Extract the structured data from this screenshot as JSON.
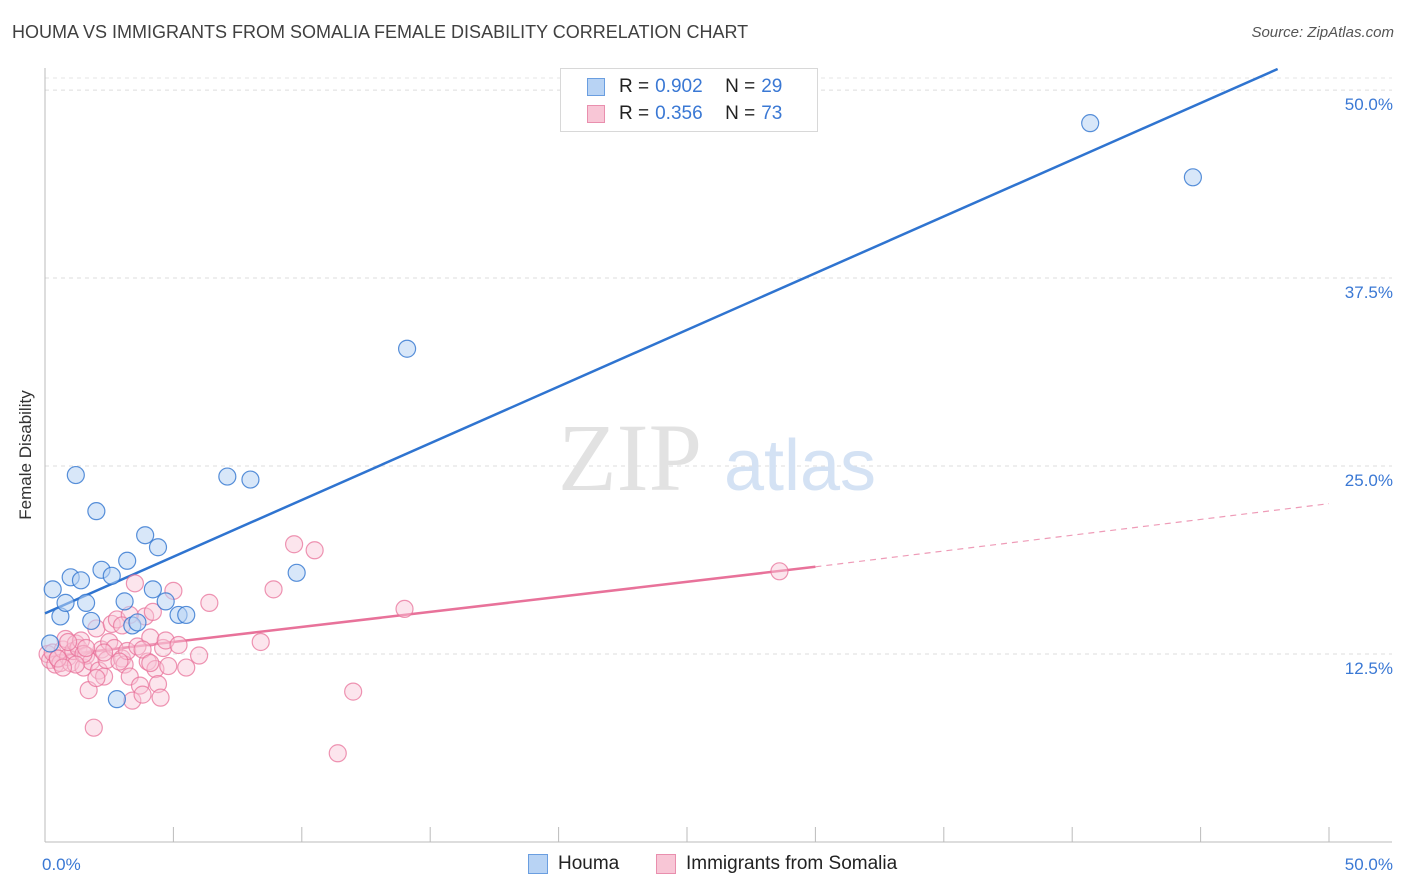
{
  "header": {
    "title": "HOUMA VS IMMIGRANTS FROM SOMALIA FEMALE DISABILITY CORRELATION CHART",
    "source": "Source: ZipAtlas.com"
  },
  "watermark": {
    "zip": "ZIP",
    "atlas": "atlas"
  },
  "colors": {
    "houma": "#2f74d0",
    "houma_fill": "#b8d3f4",
    "somalia": "#e8729a",
    "somalia_fill": "#f8c6d6",
    "axis_label": "#3a78d4"
  },
  "legend_stats": [
    {
      "r_label": "R =",
      "r_value": "0.902",
      "n_label": "N =",
      "n_value": "29"
    },
    {
      "r_label": "R =",
      "r_value": "0.356",
      "n_label": "N =",
      "n_value": "73"
    }
  ],
  "chart_data": {
    "type": "scatter",
    "ylabel": "Female Disability",
    "xlim": [
      0,
      50
    ],
    "ylim": [
      0,
      52
    ],
    "x_tick_labels": [
      "0.0%",
      "50.0%"
    ],
    "y_ticks": [
      12.5,
      25.0,
      37.5,
      50.0
    ],
    "y_tick_labels": [
      "12.5%",
      "25.0%",
      "37.5%",
      "50.0%"
    ],
    "grid": true,
    "series": [
      {
        "name": "Houma",
        "r": 0.902,
        "n": 29,
        "trend": {
          "x": [
            0,
            48
          ],
          "y": [
            15.2,
            51.4
          ]
        },
        "points": [
          [
            0.2,
            13.2
          ],
          [
            0.3,
            16.8
          ],
          [
            0.6,
            15.0
          ],
          [
            0.8,
            15.9
          ],
          [
            1.0,
            17.6
          ],
          [
            1.2,
            24.4
          ],
          [
            1.4,
            17.4
          ],
          [
            1.6,
            15.9
          ],
          [
            1.8,
            14.7
          ],
          [
            2.0,
            22.0
          ],
          [
            2.2,
            18.1
          ],
          [
            2.6,
            17.7
          ],
          [
            2.8,
            9.5
          ],
          [
            3.1,
            16.0
          ],
          [
            3.2,
            18.7
          ],
          [
            3.4,
            14.4
          ],
          [
            3.6,
            14.6
          ],
          [
            3.9,
            20.4
          ],
          [
            4.2,
            16.8
          ],
          [
            4.4,
            19.6
          ],
          [
            4.7,
            16.0
          ],
          [
            5.2,
            15.1
          ],
          [
            5.5,
            15.1
          ],
          [
            7.1,
            24.3
          ],
          [
            8.0,
            24.1
          ],
          [
            9.8,
            17.9
          ],
          [
            14.1,
            32.8
          ],
          [
            40.7,
            47.8
          ],
          [
            44.7,
            44.2
          ]
        ]
      },
      {
        "name": "Immigrants from Somalia",
        "r": 0.356,
        "n": 73,
        "trend": {
          "x": [
            0,
            30
          ],
          "y": [
            12.3,
            18.3
          ]
        },
        "trend_dashed": {
          "x": [
            30,
            50
          ],
          "y": [
            18.3,
            22.5
          ]
        },
        "points": [
          [
            0.1,
            12.5
          ],
          [
            0.2,
            12.1
          ],
          [
            0.3,
            12.6
          ],
          [
            0.4,
            11.8
          ],
          [
            0.5,
            12.2
          ],
          [
            0.6,
            11.9
          ],
          [
            0.7,
            12.8
          ],
          [
            0.8,
            13.5
          ],
          [
            0.9,
            12.3
          ],
          [
            1.0,
            11.9
          ],
          [
            1.1,
            12.7
          ],
          [
            1.2,
            13.2
          ],
          [
            1.3,
            12.9
          ],
          [
            1.4,
            13.4
          ],
          [
            1.5,
            11.6
          ],
          [
            1.6,
            12.4
          ],
          [
            1.7,
            10.1
          ],
          [
            1.8,
            12.0
          ],
          [
            1.9,
            7.6
          ],
          [
            2.0,
            14.2
          ],
          [
            2.1,
            11.4
          ],
          [
            2.2,
            12.8
          ],
          [
            2.3,
            11.0
          ],
          [
            2.4,
            12.1
          ],
          [
            2.5,
            13.3
          ],
          [
            2.6,
            14.5
          ],
          [
            2.7,
            12.9
          ],
          [
            2.8,
            14.8
          ],
          [
            3.0,
            12.2
          ],
          [
            3.1,
            11.8
          ],
          [
            3.2,
            12.7
          ],
          [
            3.3,
            11.0
          ],
          [
            3.4,
            9.4
          ],
          [
            3.5,
            17.2
          ],
          [
            3.6,
            13.0
          ],
          [
            3.7,
            10.4
          ],
          [
            3.8,
            9.8
          ],
          [
            3.9,
            15.0
          ],
          [
            4.0,
            12.0
          ],
          [
            4.1,
            13.6
          ],
          [
            4.2,
            15.3
          ],
          [
            4.3,
            11.5
          ],
          [
            4.4,
            10.5
          ],
          [
            4.5,
            9.6
          ],
          [
            4.6,
            12.9
          ],
          [
            4.7,
            13.4
          ],
          [
            4.8,
            11.7
          ],
          [
            5.0,
            16.7
          ],
          [
            5.2,
            13.1
          ],
          [
            5.5,
            11.6
          ],
          [
            6.0,
            12.4
          ],
          [
            6.4,
            15.9
          ],
          [
            8.4,
            13.3
          ],
          [
            8.9,
            16.8
          ],
          [
            9.7,
            19.8
          ],
          [
            10.5,
            19.4
          ],
          [
            11.4,
            5.9
          ],
          [
            12.0,
            10.0
          ],
          [
            14.0,
            15.5
          ],
          [
            28.6,
            18.0
          ],
          [
            0.5,
            12.2
          ],
          [
            0.9,
            13.3
          ],
          [
            1.5,
            12.5
          ],
          [
            2.3,
            12.6
          ],
          [
            2.9,
            12.0
          ],
          [
            3.3,
            15.1
          ],
          [
            3.8,
            12.8
          ],
          [
            4.1,
            11.9
          ],
          [
            1.2,
            11.8
          ],
          [
            2.0,
            10.9
          ],
          [
            3.0,
            14.4
          ],
          [
            0.7,
            11.6
          ],
          [
            1.6,
            12.9
          ]
        ]
      }
    ]
  },
  "legend": {
    "items": [
      "Houma",
      "Immigrants from Somalia"
    ]
  }
}
